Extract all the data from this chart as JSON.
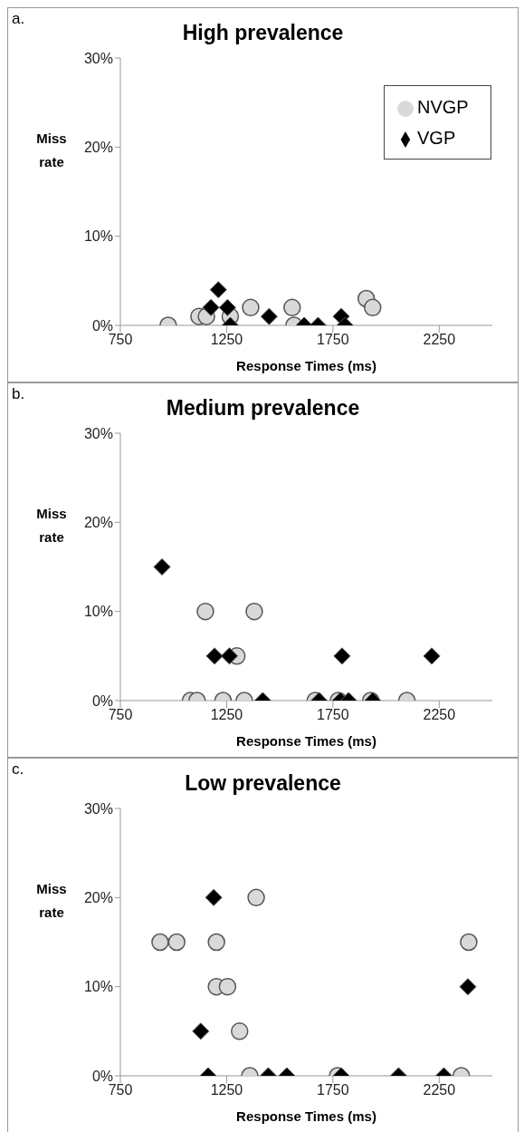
{
  "chart_data": [
    {
      "type": "scatter",
      "title": "High prevalence",
      "xlabel": "Response Times (ms)",
      "ylabel": "Miss rate",
      "annotations": [
        "a."
      ],
      "xlim": [
        750,
        2500
      ],
      "xticks": [
        750,
        1250,
        1750,
        2250
      ],
      "ylim": [
        0,
        30
      ],
      "yticks": [
        {
          "value": 0,
          "label": "0%"
        },
        {
          "value": 10,
          "label": "10%"
        },
        {
          "value": 20,
          "label": "20%"
        },
        {
          "value": 30,
          "label": "30%"
        }
      ],
      "grid": false,
      "legend": "top right",
      "series": [
        {
          "name": "NVGP",
          "color": "#d9d9d9",
          "marker": "circle",
          "x": [
            975,
            1120,
            1155,
            1267,
            1363,
            1558,
            1567,
            1907,
            1937
          ],
          "values": [
            0,
            1,
            1,
            1,
            2,
            2,
            0,
            3,
            2
          ]
        },
        {
          "name": "VGP",
          "color": "#000000",
          "marker": "diamond",
          "x": [
            1211,
            1176,
            1254,
            1267,
            1450,
            1615,
            1680,
            1789,
            1807
          ],
          "values": [
            4,
            2,
            2,
            0,
            1,
            0,
            0,
            1,
            0
          ]
        }
      ]
    },
    {
      "type": "scatter",
      "title": "Medium prevalence",
      "xlabel": "Response Times (ms)",
      "ylabel": "Miss rate",
      "annotations": [
        "b."
      ],
      "xlim": [
        750,
        2500
      ],
      "xticks": [
        750,
        1250,
        1750,
        2250
      ],
      "ylim": [
        0,
        30
      ],
      "yticks": [
        {
          "value": 0,
          "label": "0%"
        },
        {
          "value": 10,
          "label": "10%"
        },
        {
          "value": 20,
          "label": "20%"
        },
        {
          "value": 30,
          "label": "30%"
        }
      ],
      "grid": false,
      "series": [
        {
          "color": "#d9d9d9",
          "marker": "circle",
          "x": [
            1080,
            1111,
            1233,
            1333,
            1667,
            1776,
            1928,
            2098,
            1150,
            1380,
            1298
          ],
          "values": [
            0,
            0,
            0,
            0,
            0,
            0,
            0,
            0,
            10,
            10,
            5
          ]
        },
        {
          "color": "#000000",
          "marker": "diamond",
          "x": [
            946,
            1193,
            1263,
            1793,
            2215,
            1420,
            1685,
            1785,
            1824,
            1937
          ],
          "values": [
            15,
            5,
            5,
            5,
            5,
            0,
            0,
            0,
            0,
            0
          ]
        }
      ]
    },
    {
      "type": "scatter",
      "title": "Low prevalence",
      "xlabel": "Response Times (ms)",
      "ylabel": "Miss rate",
      "annotations": [
        "c."
      ],
      "xlim": [
        750,
        2500
      ],
      "xticks": [
        750,
        1250,
        1750,
        2250
      ],
      "ylim": [
        0,
        30
      ],
      "yticks": [
        {
          "value": 0,
          "label": "0%"
        },
        {
          "value": 10,
          "label": "10%"
        },
        {
          "value": 20,
          "label": "20%"
        },
        {
          "value": 30,
          "label": "30%"
        }
      ],
      "grid": false,
      "series": [
        {
          "color": "#d9d9d9",
          "marker": "circle",
          "x": [
            937,
            1015,
            1202,
            1389,
            1202,
            1254,
            1311,
            1359,
            2389,
            2354,
            1772
          ],
          "values": [
            15,
            15,
            15,
            20,
            10,
            10,
            5,
            0,
            15,
            0,
            0
          ]
        },
        {
          "color": "#000000",
          "marker": "diamond",
          "x": [
            1189,
            1128,
            1163,
            1446,
            1533,
            1789,
            2059,
            2272,
            2385
          ],
          "values": [
            20,
            5,
            0,
            0,
            0,
            0,
            0,
            0,
            10
          ]
        }
      ]
    }
  ]
}
